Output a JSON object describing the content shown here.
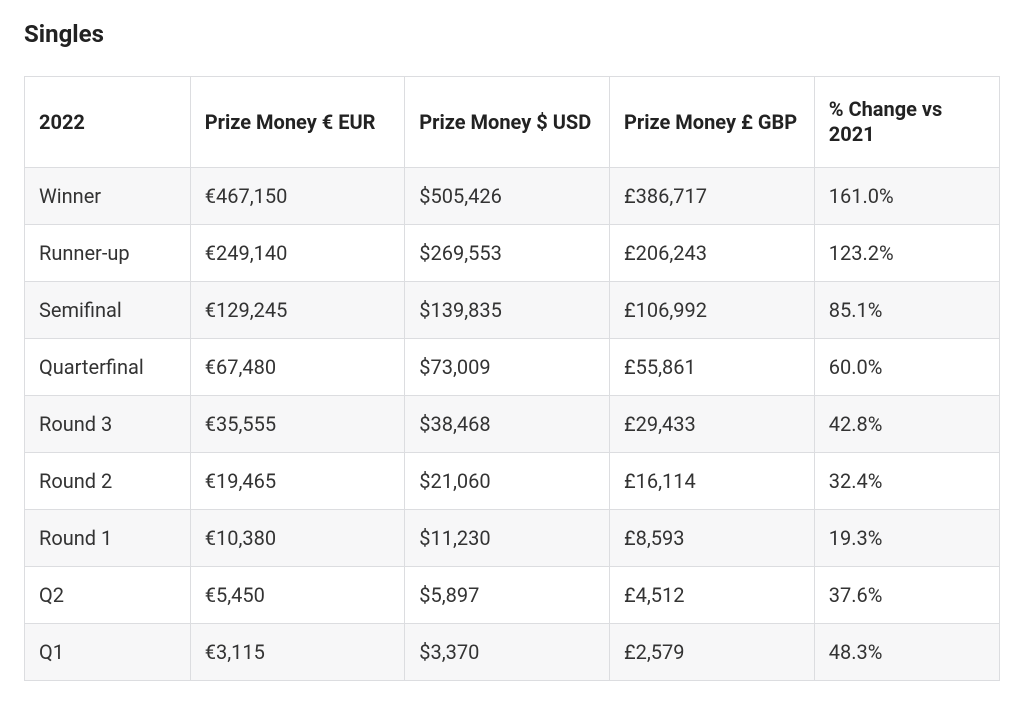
{
  "title": "Singles",
  "table": {
    "type": "table",
    "header_fontsize": 20,
    "cell_fontsize": 20,
    "header_fontweight": 700,
    "cell_fontweight": 400,
    "border_color": "#dcdde0",
    "row_alt_bg": "#f7f7f8",
    "row_bg": "#ffffff",
    "text_color": "#222222",
    "columns": [
      {
        "label": "2022",
        "width_pct": 17
      },
      {
        "label": "Prize Money € EUR",
        "width_pct": 22
      },
      {
        "label": "Prize Money $ USD",
        "width_pct": 21
      },
      {
        "label": "Prize Money £ GBP",
        "width_pct": 21
      },
      {
        "label": "% Change vs 2021",
        "width_pct": 19
      }
    ],
    "rows": [
      [
        "Winner",
        "€467,150",
        "$505,426",
        "£386,717",
        "161.0%"
      ],
      [
        "Runner-up",
        "€249,140",
        "$269,553",
        "£206,243",
        "123.2%"
      ],
      [
        "Semifinal",
        "€129,245",
        "$139,835",
        "£106,992",
        "85.1%"
      ],
      [
        "Quarterfinal",
        "€67,480",
        "$73,009",
        "£55,861",
        "60.0%"
      ],
      [
        "Round 3",
        "€35,555",
        "$38,468",
        "£29,433",
        "42.8%"
      ],
      [
        "Round 2",
        "€19,465",
        "$21,060",
        "£16,114",
        "32.4%"
      ],
      [
        "Round 1",
        "€10,380",
        "$11,230",
        "£8,593",
        "19.3%"
      ],
      [
        "Q2",
        "€5,450",
        "$5,897",
        "£4,512",
        "37.6%"
      ],
      [
        "Q1",
        "€3,115",
        "$3,370",
        "£2,579",
        "48.3%"
      ]
    ]
  }
}
